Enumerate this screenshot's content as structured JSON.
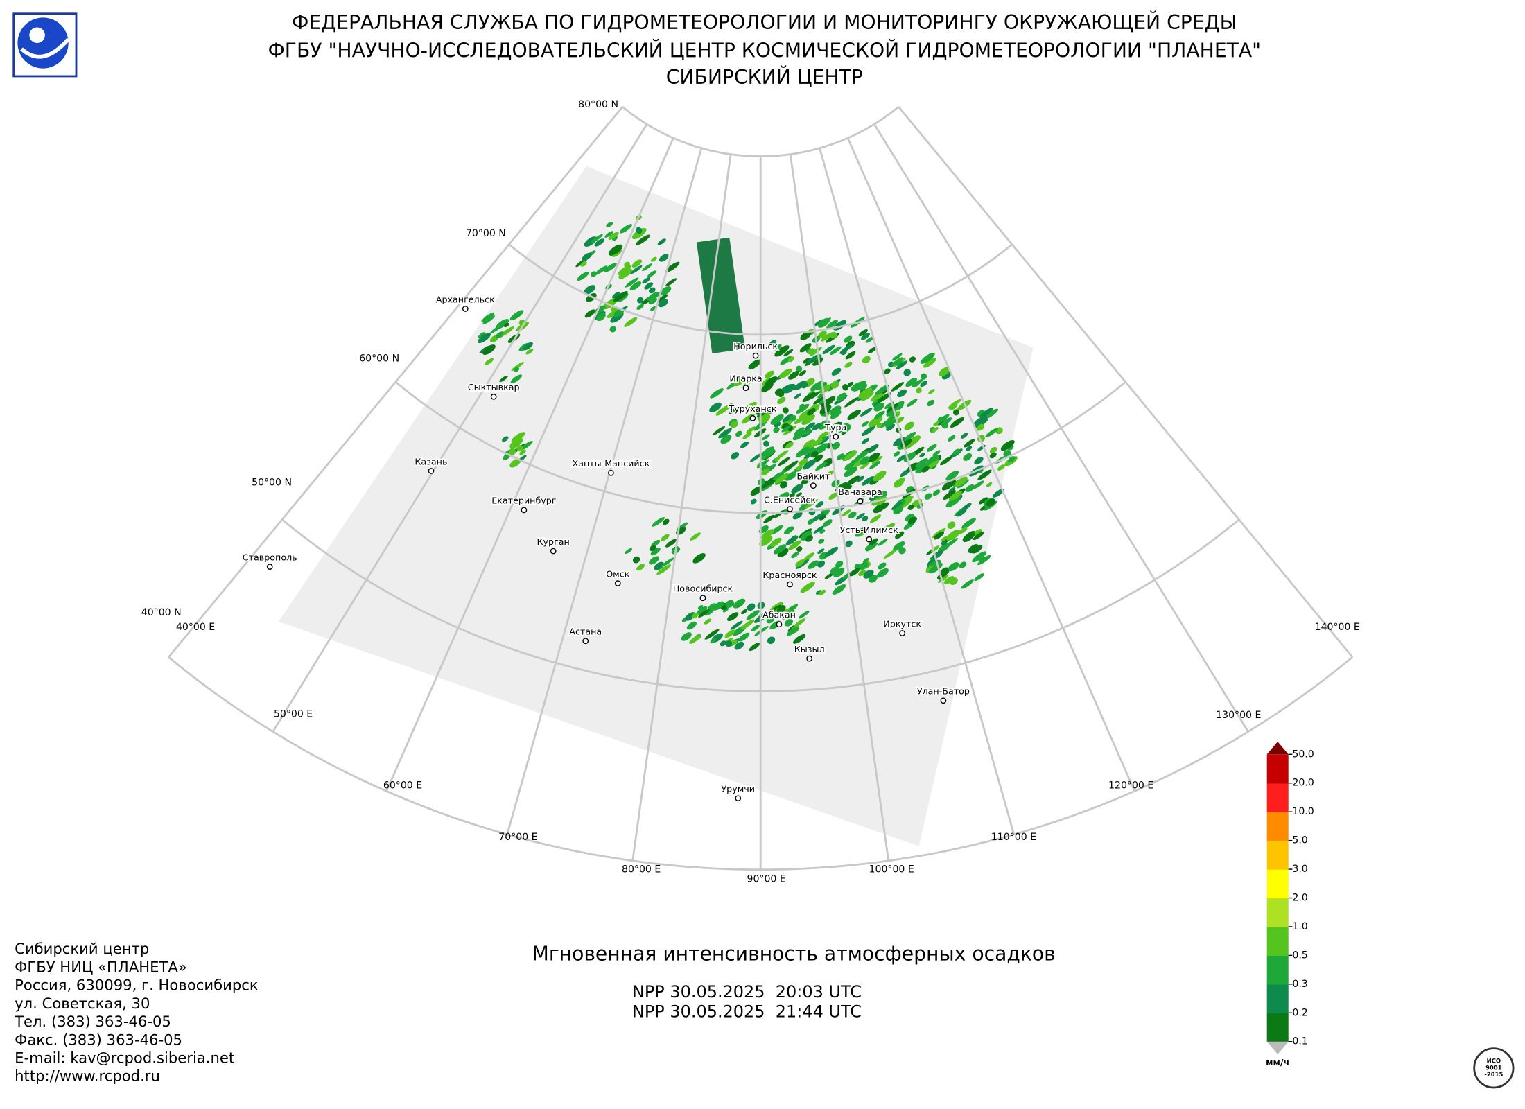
{
  "header": {
    "lines": [
      "ФЕДЕРАЛЬНАЯ СЛУЖБА ПО ГИДРОМЕТЕОРОЛОГИИ И МОНИТОРИНГУ ОКРУЖАЮЩЕЙ СРЕДЫ",
      "ФГБУ \"НАУЧНО-ИССЛЕДОВАТЕЛЬСКИЙ ЦЕНТР КОСМИЧЕСКОЙ ГИДРОМЕТЕОРОЛОГИИ \"ПЛАНЕТА\"",
      "СИБИРСКИЙ ЦЕНТР"
    ]
  },
  "graticule": {
    "latitudes": [
      "80°00 N",
      "70°00 N",
      "60°00 N",
      "50°00 N",
      "40°00 N"
    ],
    "longitudes": [
      "40°00 E",
      "50°00 E",
      "60°00 E",
      "70°00 E",
      "80°00 E",
      "90°00 E",
      "100°00 E",
      "110°00 E",
      "120°00 E",
      "130°00 E",
      "140°00 E"
    ]
  },
  "cities": [
    "Архангельск",
    "Сыктывкар",
    "Казань",
    "Ставрополь",
    "Екатеринбург",
    "Курган",
    "Ханты-Мансийск",
    "Омск",
    "Новосибирск",
    "Астана",
    "Норильск",
    "Игарка",
    "Туруханск",
    "Тура",
    "Байкит",
    "Ванавара",
    "С.Енисейск",
    "Усть-Илимск",
    "Красноярск",
    "Абакан",
    "Кызыл",
    "Иркутск",
    "Улан-Батор",
    "Урумчи"
  ],
  "title": "Мгновенная интенсивность атмосферных осадков",
  "passes": [
    "NPP 30.05.2025  20:03 UTC",
    "NPP 30.05.2025  21:44 UTC"
  ],
  "legend": {
    "labels": [
      "0.1",
      "0.2",
      "0.3",
      "0.5",
      "1.0",
      "2.0",
      "3.0",
      "5.0",
      "10.0",
      "20.0",
      "50.0"
    ],
    "colors": [
      "#0b7a14",
      "#0e8a4c",
      "#1ea83a",
      "#55c41e",
      "#aee024",
      "#ffff00",
      "#ffc400",
      "#ff8c00",
      "#ff1e1e",
      "#c40000"
    ],
    "unit": "мм/ч"
  },
  "address": [
    "Сибирский центр",
    "ФГБУ НИЦ «ПЛАНЕТА»",
    "Россия, 630099, г. Новосибирск",
    "ул. Советская, 30",
    "Тел. (383) 363-46-05",
    "Факс. (383) 363-46-05",
    "E-mail: kav@rcpod.siberia.net",
    "http://www.rcpod.ru"
  ],
  "iso": [
    "ИСО",
    "9001",
    "-2015"
  ]
}
